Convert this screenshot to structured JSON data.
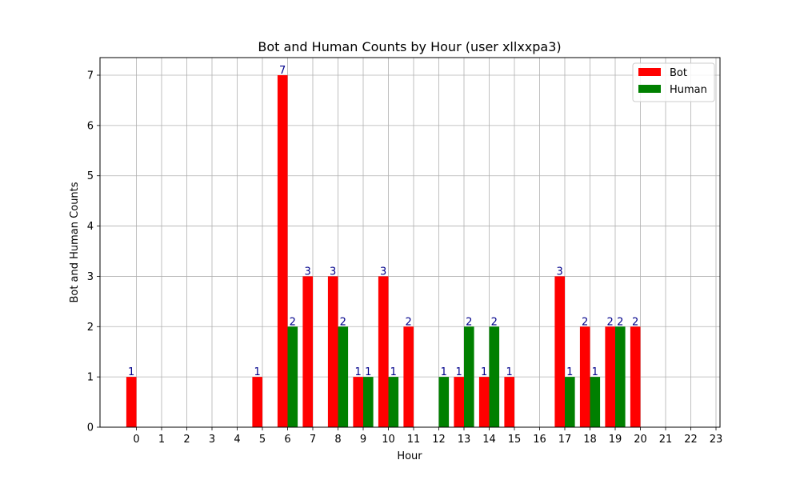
{
  "chart_data": {
    "type": "bar",
    "title": "Bot and Human Counts by Hour (user xllxxpa3)",
    "xlabel": "Hour",
    "ylabel": "Bot and Human Counts",
    "categories": [
      "0",
      "1",
      "2",
      "3",
      "4",
      "5",
      "6",
      "7",
      "8",
      "9",
      "10",
      "11",
      "12",
      "13",
      "14",
      "15",
      "16",
      "17",
      "18",
      "19",
      "20",
      "21",
      "22",
      "23"
    ],
    "series": [
      {
        "name": "Bot",
        "color": "#ff0000",
        "values": [
          1,
          0,
          0,
          0,
          0,
          1,
          7,
          3,
          3,
          1,
          3,
          2,
          0,
          1,
          1,
          1,
          0,
          3,
          2,
          2,
          2,
          0,
          0,
          0
        ]
      },
      {
        "name": "Human",
        "color": "#008000",
        "values": [
          0,
          0,
          0,
          0,
          0,
          0,
          2,
          0,
          2,
          1,
          1,
          0,
          1,
          2,
          2,
          0,
          0,
          1,
          1,
          2,
          0,
          0,
          0,
          0
        ]
      }
    ],
    "ylim": [
      0,
      7.35
    ],
    "yticks": [
      0,
      1,
      2,
      3,
      4,
      5,
      6,
      7
    ],
    "grid": true,
    "legend": "top-right",
    "bar_label_color": "#00008b"
  }
}
